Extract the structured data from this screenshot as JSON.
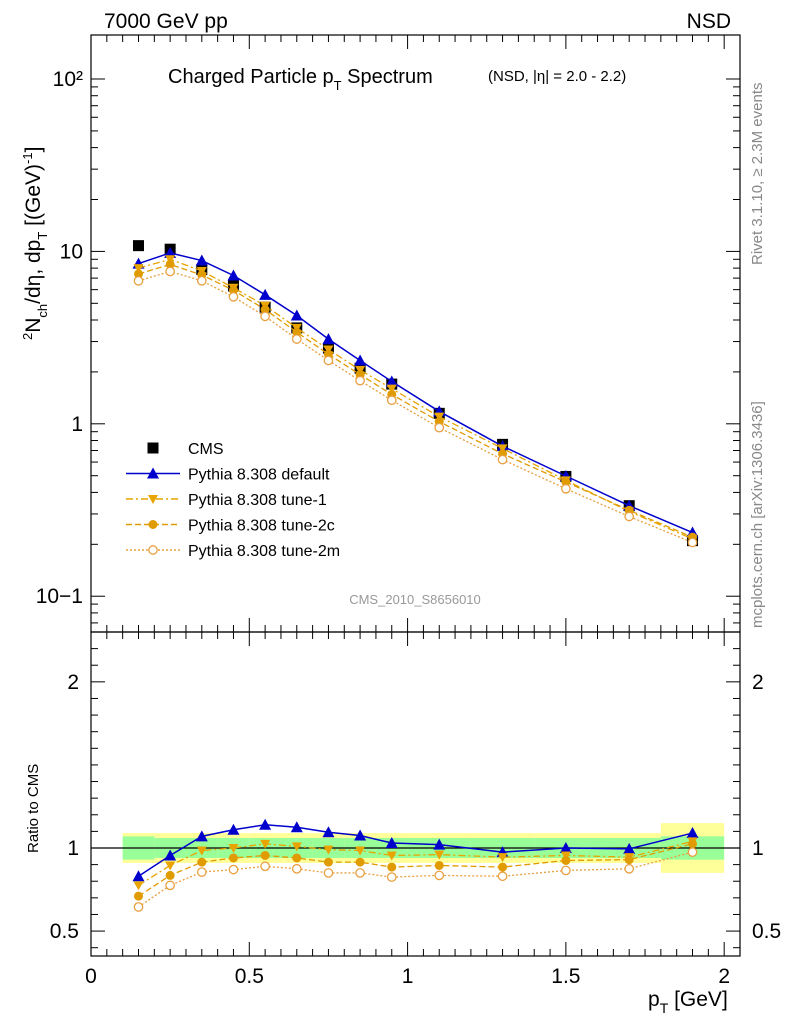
{
  "header": {
    "energy_label": "7000 GeV pp",
    "process_label": "NSD"
  },
  "side_labels": {
    "rivet": "Rivet 3.1.10, ≥ 2.3M events",
    "mcplots": "mcplots.cern.ch [arXiv:1306.3436]"
  },
  "chart_data": [
    {
      "type": "line",
      "panel": "main",
      "title": "Charged Particle p",
      "title_sub": "T",
      "title_tail": " Spectrum",
      "title_note": "(NSD, |η| = 2.0 - 2.2)",
      "analysis_label": "CMS_2010_S8656010",
      "ylabel_parts": [
        "d",
        "2",
        "N",
        "ch",
        "/dη, dp",
        "T",
        " [(GeV)",
        "-1",
        "]"
      ],
      "xlim": [
        0,
        2.05
      ],
      "ylim": [
        0.062,
        180
      ],
      "yscale": "log",
      "ytick_labels": [
        "10−1",
        "1",
        "10",
        "10²"
      ],
      "legend_position": "middle-left",
      "x": [
        0.15,
        0.25,
        0.35,
        0.45,
        0.55,
        0.65,
        0.75,
        0.85,
        0.95,
        1.1,
        1.3,
        1.5,
        1.7,
        1.9
      ],
      "series": [
        {
          "name": "CMS",
          "style": "data",
          "color": "#000000",
          "marker": "square",
          "values": [
            10.8,
            10.3,
            7.85,
            6.3,
            4.75,
            3.6,
            2.75,
            2.1,
            1.7,
            1.15,
            0.76,
            0.495,
            0.335,
            0.21
          ]
        },
        {
          "name": "Pythia 8.308 default",
          "style": "solid",
          "color": "#0000cc",
          "marker": "triangle-up",
          "values": [
            8.5,
            9.8,
            8.85,
            7.25,
            5.6,
            4.25,
            3.1,
            2.33,
            1.76,
            1.18,
            0.742,
            0.498,
            0.335,
            0.234
          ]
        },
        {
          "name": "Pythia 8.308 tune-1",
          "style": "dashdot",
          "color": "#e8a400",
          "marker": "triangle-down",
          "values": [
            8.0,
            9.0,
            7.7,
            6.15,
            4.85,
            3.6,
            2.7,
            2.05,
            1.6,
            1.1,
            0.72,
            0.47,
            0.31,
            0.215
          ]
        },
        {
          "name": "Pythia 8.308 tune-2c",
          "style": "dashed",
          "color": "#e09b00",
          "marker": "circle",
          "values": [
            7.4,
            8.4,
            7.3,
            5.95,
            4.6,
            3.4,
            2.53,
            1.93,
            1.48,
            1.03,
            0.67,
            0.46,
            0.315,
            0.22
          ]
        },
        {
          "name": "Pythia 8.308 tune-2m",
          "style": "dotted",
          "color": "#e8a040",
          "marker": "open-circle",
          "values": [
            6.75,
            7.65,
            6.75,
            5.45,
            4.2,
            3.1,
            2.33,
            1.78,
            1.37,
            0.95,
            0.62,
            0.42,
            0.29,
            0.205
          ]
        }
      ]
    },
    {
      "type": "line",
      "panel": "ratio",
      "ylabel": "Ratio to CMS",
      "xlabel": "p",
      "xlabel_sub": "T",
      "xlabel_tail": " [GeV]",
      "xlim": [
        0,
        2.05
      ],
      "ylim": [
        0.35,
        2.3
      ],
      "xtick_labels": [
        "0",
        "0.5",
        "1",
        "1.5",
        "2"
      ],
      "ytick_labels": [
        "0.5",
        "1",
        "2"
      ],
      "bands": {
        "bins": [
          [
            0.1,
            0.2
          ],
          [
            0.2,
            0.3
          ],
          [
            0.3,
            0.4
          ],
          [
            0.4,
            0.5
          ],
          [
            0.5,
            0.6
          ],
          [
            0.6,
            0.7
          ],
          [
            0.7,
            0.8
          ],
          [
            0.8,
            0.9
          ],
          [
            0.9,
            1.0
          ],
          [
            1.0,
            1.2
          ],
          [
            1.2,
            1.4
          ],
          [
            1.4,
            1.6
          ],
          [
            1.6,
            1.8
          ],
          [
            1.8,
            2.0
          ]
        ],
        "inner_half_width": [
          0.07,
          0.06,
          0.06,
          0.06,
          0.06,
          0.06,
          0.06,
          0.06,
          0.06,
          0.06,
          0.06,
          0.06,
          0.06,
          0.07
        ],
        "outer_half_width": [
          0.09,
          0.09,
          0.09,
          0.09,
          0.09,
          0.09,
          0.09,
          0.09,
          0.09,
          0.09,
          0.09,
          0.09,
          0.09,
          0.15
        ],
        "inner_color": "#99ff99",
        "outer_color": "#ffff99"
      },
      "x": [
        0.15,
        0.25,
        0.35,
        0.45,
        0.55,
        0.65,
        0.75,
        0.85,
        0.95,
        1.1,
        1.3,
        1.5,
        1.7,
        1.9
      ],
      "series": [
        {
          "name": "Pythia 8.308 default",
          "style": "solid",
          "color": "#0000cc",
          "marker": "triangle-up",
          "values": [
            0.83,
            0.955,
            1.07,
            1.11,
            1.14,
            1.125,
            1.095,
            1.075,
            1.03,
            1.02,
            0.975,
            1.0,
            0.995,
            1.09
          ]
        },
        {
          "name": "Pythia 8.308 tune-1",
          "style": "dashdot",
          "color": "#e8a400",
          "marker": "triangle-down",
          "values": [
            0.775,
            0.895,
            0.985,
            1.0,
            1.025,
            1.01,
            0.99,
            0.985,
            0.955,
            0.96,
            0.945,
            0.955,
            0.945,
            1.04
          ]
        },
        {
          "name": "Pythia 8.308 tune-2c",
          "style": "dashed",
          "color": "#e09b00",
          "marker": "circle",
          "values": [
            0.71,
            0.835,
            0.915,
            0.94,
            0.955,
            0.94,
            0.915,
            0.915,
            0.885,
            0.895,
            0.885,
            0.925,
            0.93,
            1.025
          ]
        },
        {
          "name": "Pythia 8.308 tune-2m",
          "style": "dotted",
          "color": "#e8a040",
          "marker": "open-circle",
          "values": [
            0.645,
            0.775,
            0.855,
            0.87,
            0.89,
            0.875,
            0.85,
            0.85,
            0.825,
            0.835,
            0.83,
            0.865,
            0.875,
            0.975
          ]
        }
      ]
    }
  ]
}
